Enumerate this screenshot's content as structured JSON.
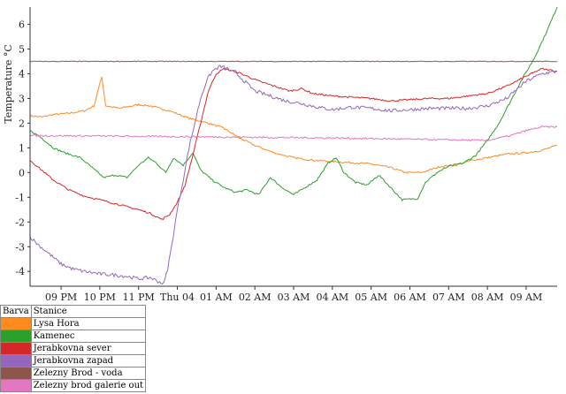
{
  "chart_data": {
    "type": "line",
    "ylabel": "Temperature °C",
    "xlabel": "",
    "ylim": [
      -4.6,
      6.7
    ],
    "xlim": [
      20.2,
      33.8
    ],
    "y_ticks": [
      -4,
      -3,
      -2,
      -1,
      0,
      1,
      2,
      3,
      4,
      5,
      6
    ],
    "x_ticks": [
      {
        "label": "09 PM",
        "x": 21
      },
      {
        "label": "10 PM",
        "x": 22
      },
      {
        "label": "11 PM",
        "x": 23
      },
      {
        "label": "Thu 04",
        "x": 24
      },
      {
        "label": "01 AM",
        "x": 25
      },
      {
        "label": "02 AM",
        "x": 26
      },
      {
        "label": "03 AM",
        "x": 27
      },
      {
        "label": "04 AM",
        "x": 28
      },
      {
        "label": "05 AM",
        "x": 29
      },
      {
        "label": "06 AM",
        "x": 30
      },
      {
        "label": "07 AM",
        "x": 31
      },
      {
        "label": "08 AM",
        "x": 32
      },
      {
        "label": "09 AM",
        "x": 33
      }
    ],
    "legend": {
      "header_color": "Barva",
      "header_name": "Stanice"
    },
    "series": [
      {
        "name": "Lysa Hora",
        "color": "#ff8a1e",
        "points": [
          [
            20.2,
            2.3
          ],
          [
            20.5,
            2.25
          ],
          [
            20.8,
            2.35
          ],
          [
            21.2,
            2.4
          ],
          [
            21.6,
            2.5
          ],
          [
            21.85,
            2.7
          ],
          [
            22.05,
            3.9
          ],
          [
            22.15,
            2.7
          ],
          [
            22.5,
            2.6
          ],
          [
            23.0,
            2.75
          ],
          [
            23.3,
            2.7
          ],
          [
            23.8,
            2.5
          ],
          [
            24.3,
            2.2
          ],
          [
            24.8,
            2.0
          ],
          [
            25.2,
            1.8
          ],
          [
            25.6,
            1.4
          ],
          [
            26.0,
            1.1
          ],
          [
            26.5,
            0.8
          ],
          [
            27.0,
            0.6
          ],
          [
            27.5,
            0.5
          ],
          [
            28.0,
            0.45
          ],
          [
            28.5,
            0.4
          ],
          [
            29.0,
            0.35
          ],
          [
            29.5,
            0.2
          ],
          [
            29.9,
            0.0
          ],
          [
            30.3,
            0.0
          ],
          [
            30.8,
            0.25
          ],
          [
            31.2,
            0.3
          ],
          [
            31.6,
            0.5
          ],
          [
            32.0,
            0.6
          ],
          [
            32.5,
            0.75
          ],
          [
            33.0,
            0.8
          ],
          [
            33.4,
            0.9
          ],
          [
            33.8,
            1.1
          ]
        ]
      },
      {
        "name": "Kamenec",
        "color": "#2ca02c",
        "points": [
          [
            20.2,
            1.7
          ],
          [
            20.5,
            1.4
          ],
          [
            20.8,
            1.0
          ],
          [
            21.1,
            0.8
          ],
          [
            21.5,
            0.6
          ],
          [
            21.8,
            0.2
          ],
          [
            22.1,
            -0.2
          ],
          [
            22.4,
            -0.1
          ],
          [
            22.7,
            -0.2
          ],
          [
            23.0,
            0.3
          ],
          [
            23.25,
            0.6
          ],
          [
            23.45,
            0.4
          ],
          [
            23.7,
            0.0
          ],
          [
            23.9,
            0.6
          ],
          [
            24.15,
            0.3
          ],
          [
            24.4,
            0.8
          ],
          [
            24.6,
            0.1
          ],
          [
            24.9,
            -0.3
          ],
          [
            25.2,
            -0.6
          ],
          [
            25.5,
            -0.8
          ],
          [
            25.8,
            -0.7
          ],
          [
            26.1,
            -0.9
          ],
          [
            26.4,
            -0.2
          ],
          [
            26.7,
            -0.6
          ],
          [
            27.0,
            -0.9
          ],
          [
            27.3,
            -0.6
          ],
          [
            27.6,
            -0.3
          ],
          [
            27.9,
            0.4
          ],
          [
            28.1,
            0.6
          ],
          [
            28.3,
            0.0
          ],
          [
            28.6,
            -0.4
          ],
          [
            28.9,
            -0.5
          ],
          [
            29.2,
            -0.1
          ],
          [
            29.5,
            -0.6
          ],
          [
            29.8,
            -1.1
          ],
          [
            30.2,
            -1.05
          ],
          [
            30.4,
            -0.4
          ],
          [
            30.7,
            0.0
          ],
          [
            31.0,
            0.25
          ],
          [
            31.4,
            0.4
          ],
          [
            31.7,
            0.7
          ],
          [
            32.0,
            1.3
          ],
          [
            32.3,
            2.0
          ],
          [
            32.6,
            2.9
          ],
          [
            32.9,
            3.8
          ],
          [
            33.2,
            4.6
          ],
          [
            33.5,
            5.6
          ],
          [
            33.8,
            6.7
          ]
        ]
      },
      {
        "name": "Jerabkovna sever",
        "color": "#d62728",
        "points": [
          [
            20.2,
            0.5
          ],
          [
            20.5,
            0.1
          ],
          [
            20.8,
            -0.3
          ],
          [
            21.2,
            -0.7
          ],
          [
            21.6,
            -0.95
          ],
          [
            22.0,
            -1.1
          ],
          [
            22.5,
            -1.3
          ],
          [
            23.0,
            -1.5
          ],
          [
            23.3,
            -1.65
          ],
          [
            23.6,
            -1.9
          ],
          [
            23.8,
            -1.7
          ],
          [
            24.0,
            -1.2
          ],
          [
            24.2,
            -0.5
          ],
          [
            24.4,
            0.7
          ],
          [
            24.6,
            2.0
          ],
          [
            24.8,
            3.3
          ],
          [
            25.0,
            4.0
          ],
          [
            25.2,
            4.2
          ],
          [
            25.5,
            4.1
          ],
          [
            25.8,
            3.9
          ],
          [
            26.1,
            3.7
          ],
          [
            26.5,
            3.5
          ],
          [
            26.9,
            3.3
          ],
          [
            27.2,
            3.4
          ],
          [
            27.5,
            3.2
          ],
          [
            28.0,
            3.1
          ],
          [
            28.5,
            3.05
          ],
          [
            29.0,
            3.0
          ],
          [
            29.5,
            2.9
          ],
          [
            30.0,
            2.95
          ],
          [
            30.5,
            3.0
          ],
          [
            31.0,
            3.0
          ],
          [
            31.5,
            3.1
          ],
          [
            32.0,
            3.2
          ],
          [
            32.5,
            3.5
          ],
          [
            33.0,
            3.9
          ],
          [
            33.4,
            4.2
          ],
          [
            33.8,
            4.1
          ]
        ]
      },
      {
        "name": "Jerabkovna zapad",
        "color": "#9467bd",
        "points": [
          [
            20.2,
            -2.6
          ],
          [
            20.4,
            -2.9
          ],
          [
            20.7,
            -3.3
          ],
          [
            21.0,
            -3.7
          ],
          [
            21.3,
            -3.9
          ],
          [
            21.6,
            -4.0
          ],
          [
            22.0,
            -4.1
          ],
          [
            22.4,
            -4.15
          ],
          [
            22.7,
            -4.2
          ],
          [
            23.0,
            -4.3
          ],
          [
            23.3,
            -4.25
          ],
          [
            23.5,
            -4.4
          ],
          [
            23.65,
            -4.5
          ],
          [
            23.75,
            -3.9
          ],
          [
            23.85,
            -3.0
          ],
          [
            24.0,
            -1.5
          ],
          [
            24.15,
            -0.3
          ],
          [
            24.3,
            1.0
          ],
          [
            24.45,
            2.0
          ],
          [
            24.6,
            3.0
          ],
          [
            24.75,
            3.7
          ],
          [
            24.9,
            4.1
          ],
          [
            25.1,
            4.3
          ],
          [
            25.3,
            4.2
          ],
          [
            25.6,
            3.9
          ],
          [
            26.0,
            3.3
          ],
          [
            26.4,
            3.1
          ],
          [
            26.8,
            2.9
          ],
          [
            27.2,
            2.8
          ],
          [
            27.6,
            2.65
          ],
          [
            28.0,
            2.55
          ],
          [
            28.5,
            2.65
          ],
          [
            29.0,
            2.6
          ],
          [
            29.5,
            2.5
          ],
          [
            30.0,
            2.55
          ],
          [
            30.5,
            2.6
          ],
          [
            31.0,
            2.6
          ],
          [
            31.5,
            2.6
          ],
          [
            32.0,
            2.7
          ],
          [
            32.5,
            3.0
          ],
          [
            33.0,
            3.7
          ],
          [
            33.4,
            4.0
          ],
          [
            33.8,
            4.1
          ]
        ]
      },
      {
        "name": "Zelezny Brod - voda",
        "color": "#8c564b",
        "points": [
          [
            20.2,
            4.5
          ],
          [
            33.8,
            4.5
          ]
        ]
      },
      {
        "name": "Zelezny brod galerie out",
        "color": "#e377c2",
        "points": [
          [
            20.2,
            1.5
          ],
          [
            24.5,
            1.45
          ],
          [
            28.0,
            1.4
          ],
          [
            32.0,
            1.3
          ],
          [
            32.6,
            1.5
          ],
          [
            33.0,
            1.7
          ],
          [
            33.4,
            1.85
          ],
          [
            33.8,
            1.85
          ]
        ]
      }
    ]
  }
}
